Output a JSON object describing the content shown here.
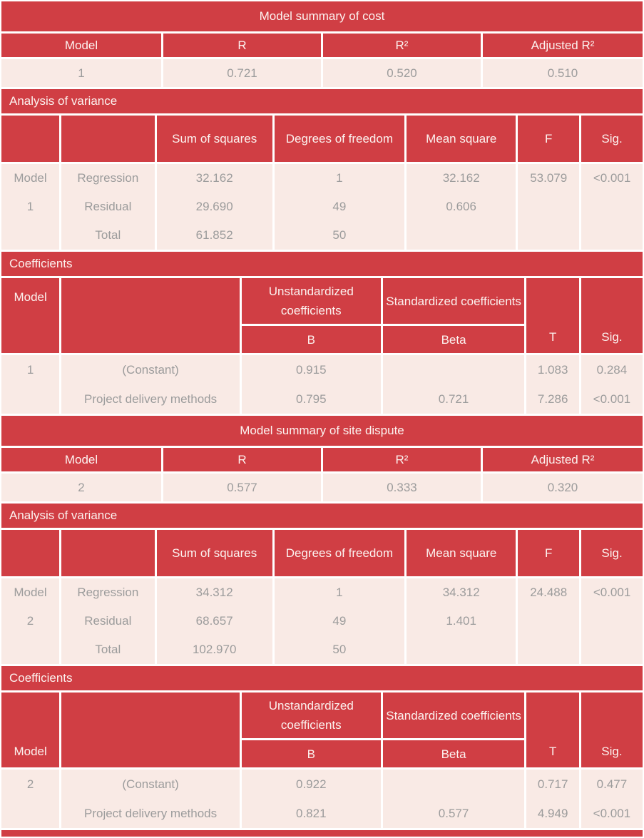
{
  "colors": {
    "header_red": "#d03e44",
    "body_pink": "#f9eae5",
    "header_text": "#fcf2ef",
    "body_text": "#9c9c9c",
    "background": "#ffffff"
  },
  "model1": {
    "summary": {
      "title": "Model summary of cost",
      "headers": {
        "model": "Model",
        "r": "R",
        "r2": "R²",
        "adj_r2": "Adjusted R²"
      },
      "values": {
        "model": "1",
        "r": "0.721",
        "r2": "0.520",
        "adj_r2": "0.510"
      }
    },
    "anova": {
      "title": "Analysis of variance",
      "headers": {
        "blank1": "",
        "blank2": "",
        "sum_of_squares": "Sum of squares",
        "degrees_of_freedom": "Degrees of freedom",
        "mean_square": "Mean square",
        "f": "F",
        "sig": "Sig."
      },
      "body": {
        "model_col": [
          "Model",
          "1",
          ""
        ],
        "labels": [
          "Regression",
          "Residual",
          "Total"
        ],
        "sum_of_squares": [
          "32.162",
          "29.690",
          "61.852"
        ],
        "degrees_of_freedom": [
          "1",
          "49",
          "50"
        ],
        "mean_square": [
          "32.162",
          "0.606",
          ""
        ],
        "f": [
          "53.079",
          "",
          ""
        ],
        "sig": [
          "<0.001",
          "",
          ""
        ]
      }
    },
    "coefficients": {
      "title": "Coefficients",
      "headers": {
        "model": "Model",
        "blank": "",
        "unstandardized": "Unstandardized coefficients",
        "standardized": "Standardized coefficients",
        "b": "B",
        "beta": "Beta",
        "t": "T",
        "sig": "Sig."
      },
      "body": {
        "model_col": [
          "1",
          ""
        ],
        "labels": [
          "(Constant)",
          "Project delivery methods"
        ],
        "b": [
          "0.915",
          "0.795"
        ],
        "beta": [
          "",
          "0.721"
        ],
        "t": [
          "1.083",
          "7.286"
        ],
        "sig": [
          "0.284",
          "<0.001"
        ]
      }
    }
  },
  "model2": {
    "summary": {
      "title": "Model summary of site dispute",
      "headers": {
        "model": "Model",
        "r": "R",
        "r2": "R²",
        "adj_r2": "Adjusted R²"
      },
      "values": {
        "model": "2",
        "r": "0.577",
        "r2": "0.333",
        "adj_r2": "0.320"
      }
    },
    "anova": {
      "title": "Analysis of variance",
      "headers": {
        "blank1": "",
        "blank2": "",
        "sum_of_squares": "Sum of squares",
        "degrees_of_freedom": "Degrees of freedom",
        "mean_square": "Mean square",
        "f": "F",
        "sig": "Sig."
      },
      "body": {
        "model_col": [
          "Model",
          "2",
          ""
        ],
        "labels": [
          "Regression",
          "Residual",
          "Total"
        ],
        "sum_of_squares": [
          "34.312",
          "68.657",
          "102.970"
        ],
        "degrees_of_freedom": [
          "1",
          "49",
          "50"
        ],
        "mean_square": [
          "34.312",
          "1.401",
          ""
        ],
        "f": [
          "24.488",
          "",
          ""
        ],
        "sig": [
          "<0.001",
          "",
          ""
        ]
      }
    },
    "coefficients": {
      "title": "Coefficients",
      "headers": {
        "model": "Model",
        "blank": "",
        "unstandardized": "Unstandardized coefficients",
        "standardized": "Standardized coefficients",
        "b": "B",
        "beta": "Beta",
        "t": "T",
        "sig": "Sig."
      },
      "body": {
        "model_col": [
          "2",
          ""
        ],
        "labels": [
          "(Constant)",
          "Project delivery methods"
        ],
        "b": [
          "0.922",
          "0.821"
        ],
        "beta": [
          "",
          "0.577"
        ],
        "t": [
          "0.717",
          "4.949"
        ],
        "sig": [
          "0.477",
          "<0.001"
        ]
      }
    }
  }
}
